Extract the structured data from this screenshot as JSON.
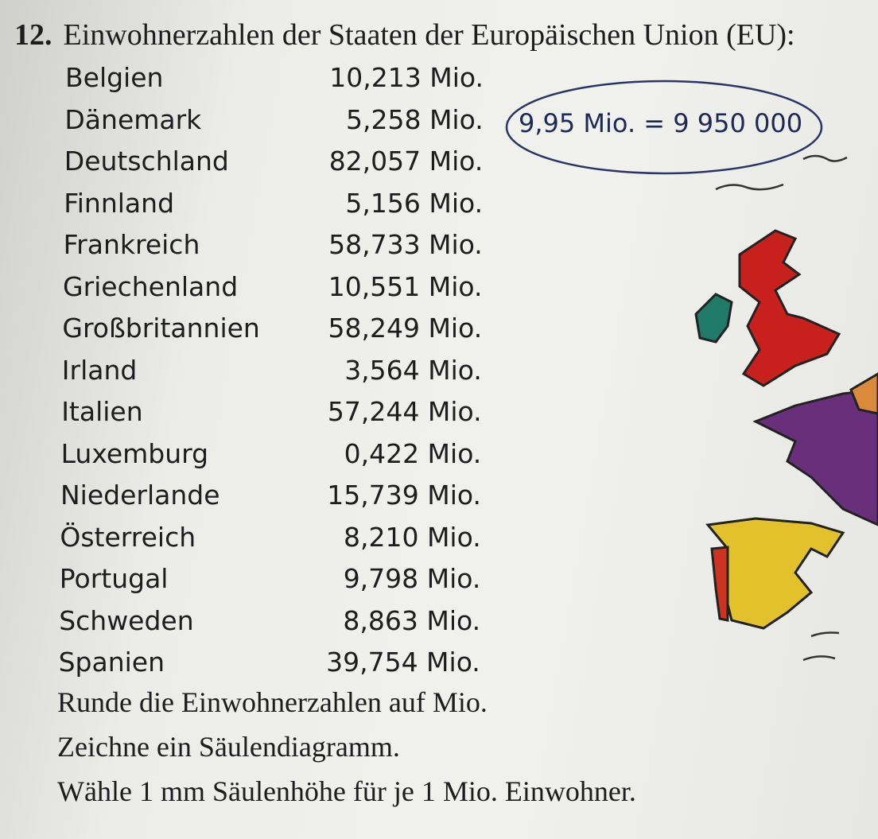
{
  "exercise": {
    "number": "12.",
    "title": "Einwohnerzahlen der Staaten der Europäischen Union (EU):",
    "rows": [
      [
        "Belgien",
        "10,213 Mio."
      ],
      [
        "Dänemark",
        "5,258 Mio."
      ],
      [
        "Deutschland",
        "82,057 Mio."
      ],
      [
        "Finnland",
        "5,156 Mio."
      ],
      [
        "Frankreich",
        "58,733 Mio."
      ],
      [
        "Griechenland",
        "10,551 Mio."
      ],
      [
        "Großbritannien",
        "58,249 Mio."
      ],
      [
        "Irland",
        "3,564 Mio."
      ],
      [
        "Italien",
        "57,244 Mio."
      ],
      [
        "Luxemburg",
        "0,422 Mio."
      ],
      [
        "Niederlande",
        "15,739 Mio."
      ],
      [
        "Österreich",
        "8,210 Mio."
      ],
      [
        "Portugal",
        "9,798 Mio."
      ],
      [
        "Schweden",
        "8,863 Mio."
      ],
      [
        "Spanien",
        "39,754 Mio."
      ]
    ],
    "note": "9,95 Mio. = 9 950 000",
    "instructions": [
      "Runde die Einwohnerzahlen auf Mio.",
      "Zeichne ein Säulendiagramm.",
      "Wähle 1 mm Säulenhöhe für je 1 Mio. Einwohner."
    ]
  }
}
